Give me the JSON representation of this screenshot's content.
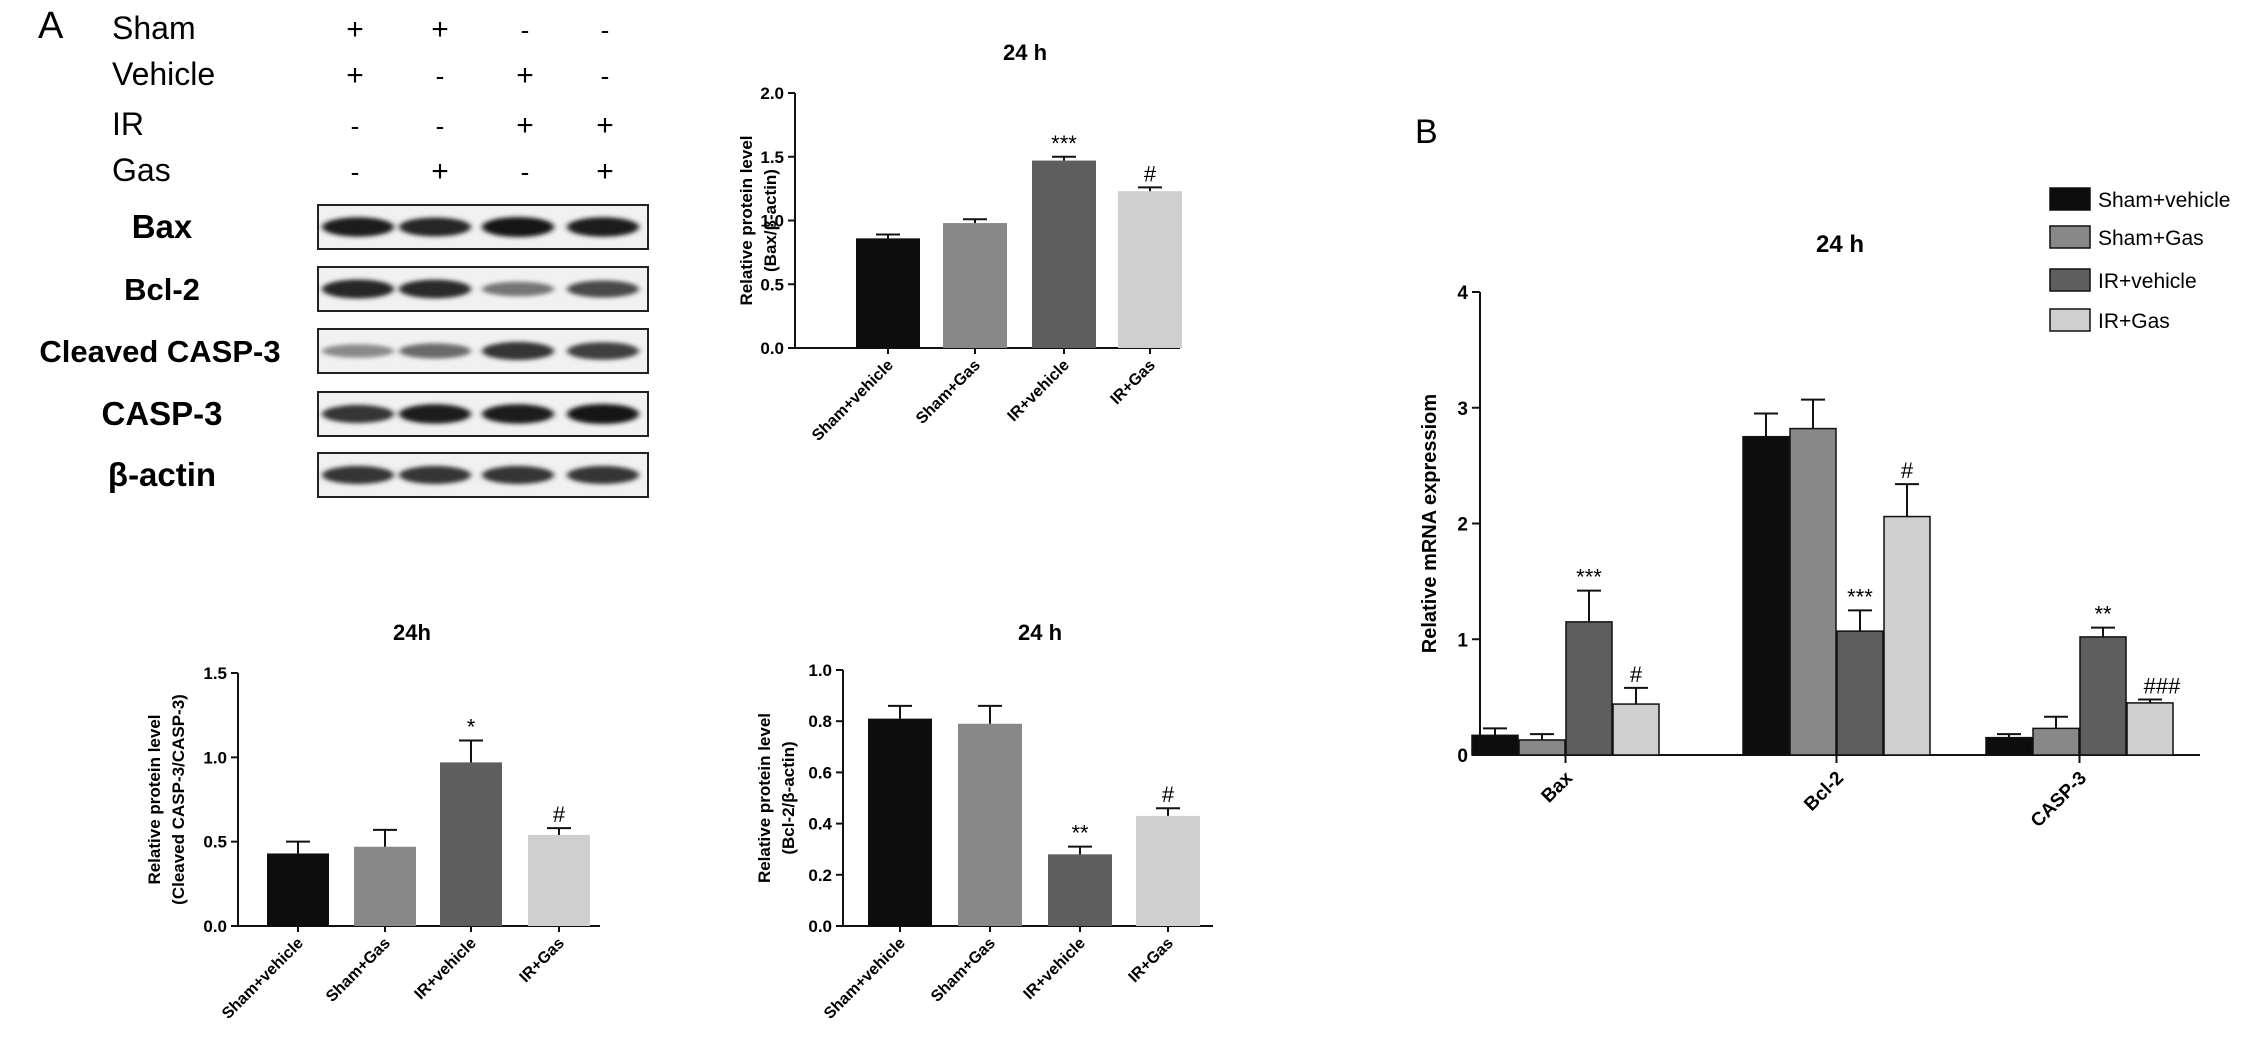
{
  "panel_labels": {
    "a": "A",
    "b": "B"
  },
  "colors": {
    "sham_vehicle": "#0d0d0d",
    "sham_gas": "#888888",
    "ir_vehicle": "#5e5e5e",
    "ir_gas": "#cfcfcf"
  },
  "treatment_table": {
    "rows": [
      {
        "label": "Sham",
        "marks": [
          "+",
          "+",
          "-",
          "-"
        ]
      },
      {
        "label": "Vehicle",
        "marks": [
          "+",
          "-",
          "+",
          "-"
        ]
      },
      {
        "label": "IR",
        "marks": [
          "-",
          "-",
          "+",
          "+"
        ]
      },
      {
        "label": "Gas",
        "marks": [
          "-",
          "+",
          "-",
          "+"
        ]
      }
    ]
  },
  "blot": {
    "lanes": 4,
    "rows": [
      {
        "label": "Bax",
        "intensities": [
          0.95,
          0.92,
          1.0,
          0.95
        ]
      },
      {
        "label": "Bcl-2",
        "intensities": [
          0.92,
          0.9,
          0.55,
          0.75
        ]
      },
      {
        "label": "Cleaved CASP-3",
        "intensities": [
          0.45,
          0.6,
          0.85,
          0.8
        ]
      },
      {
        "label": "CASP-3",
        "intensities": [
          0.85,
          0.95,
          0.95,
          1.0
        ]
      },
      {
        "label": "β-actin",
        "intensities": [
          0.85,
          0.85,
          0.85,
          0.85
        ]
      }
    ]
  },
  "chart_data": [
    {
      "id": "bax_protein",
      "type": "bar",
      "title": "24 h",
      "ylabel": [
        "Relative protein level",
        "(Bax/β-actin)"
      ],
      "categories": [
        "Sham+vehicle",
        "Sham+Gas",
        "IR+vehicle",
        "IR+Gas"
      ],
      "values": [
        0.86,
        0.98,
        1.47,
        1.23
      ],
      "errors": [
        0.03,
        0.03,
        0.03,
        0.03
      ],
      "annotations": [
        "",
        "",
        "***",
        "#"
      ],
      "ylim": [
        0,
        2.0
      ],
      "yticks": [
        "0.0",
        "0.5",
        "1.0",
        "1.5",
        "2.0"
      ],
      "ytick_values": [
        0,
        0.5,
        1.0,
        1.5,
        2.0
      ]
    },
    {
      "id": "cleaved_casp3_protein",
      "type": "bar",
      "title": "24h",
      "ylabel": [
        "Relative protein level",
        "(Cleaved CASP-3/CASP-3)"
      ],
      "categories": [
        "Sham+vehicle",
        "Sham+Gas",
        "IR+vehicle",
        "IR+Gas"
      ],
      "values": [
        0.43,
        0.47,
        0.97,
        0.54
      ],
      "errors": [
        0.07,
        0.1,
        0.13,
        0.04
      ],
      "annotations": [
        "",
        "",
        "*",
        "#"
      ],
      "ylim": [
        0,
        1.5
      ],
      "yticks": [
        "0.0",
        "0.5",
        "1.0",
        "1.5"
      ],
      "ytick_values": [
        0,
        0.5,
        1.0,
        1.5
      ]
    },
    {
      "id": "bcl2_protein",
      "type": "bar",
      "title": "24 h",
      "ylabel": [
        "Relative protein level",
        "(Bcl-2/β-actin)"
      ],
      "categories": [
        "Sham+vehicle",
        "Sham+Gas",
        "IR+vehicle",
        "IR+Gas"
      ],
      "values": [
        0.81,
        0.79,
        0.28,
        0.43
      ],
      "errors": [
        0.05,
        0.07,
        0.03,
        0.03
      ],
      "annotations": [
        "",
        "",
        "**",
        "#"
      ],
      "ylim": [
        0,
        1.0
      ],
      "yticks": [
        "0.0",
        "0.2",
        "0.4",
        "0.6",
        "0.8",
        "1.0"
      ],
      "ytick_values": [
        0,
        0.2,
        0.4,
        0.6,
        0.8,
        1.0
      ]
    },
    {
      "id": "mrna_expression",
      "type": "bar",
      "title": "24 h",
      "ylabel": [
        "Relative mRNA expressiom"
      ],
      "categories": [
        "Bax",
        "Bcl-2",
        "CASP-3"
      ],
      "series": [
        {
          "name": "Sham+vehicle",
          "values": [
            0.17,
            2.75,
            0.15
          ],
          "errors": [
            0.06,
            0.2,
            0.03
          ],
          "annotations": [
            "",
            "",
            ""
          ]
        },
        {
          "name": "Sham+Gas",
          "values": [
            0.13,
            2.82,
            0.23
          ],
          "errors": [
            0.05,
            0.25,
            0.1
          ],
          "annotations": [
            "",
            "",
            ""
          ]
        },
        {
          "name": "IR+vehicle",
          "values": [
            1.15,
            1.07,
            1.02
          ],
          "errors": [
            0.27,
            0.18,
            0.08
          ],
          "annotations": [
            "***",
            "***",
            "**"
          ]
        },
        {
          "name": "IR+Gas",
          "values": [
            0.44,
            2.06,
            0.45
          ],
          "errors": [
            0.14,
            0.28,
            0.03
          ],
          "annotations": [
            "#",
            "#",
            "###"
          ]
        }
      ],
      "ylim": [
        0,
        4
      ],
      "yticks": [
        "0",
        "1",
        "2",
        "3",
        "4"
      ],
      "ytick_values": [
        0,
        1,
        2,
        3,
        4
      ],
      "legend_position": "top-right"
    }
  ]
}
